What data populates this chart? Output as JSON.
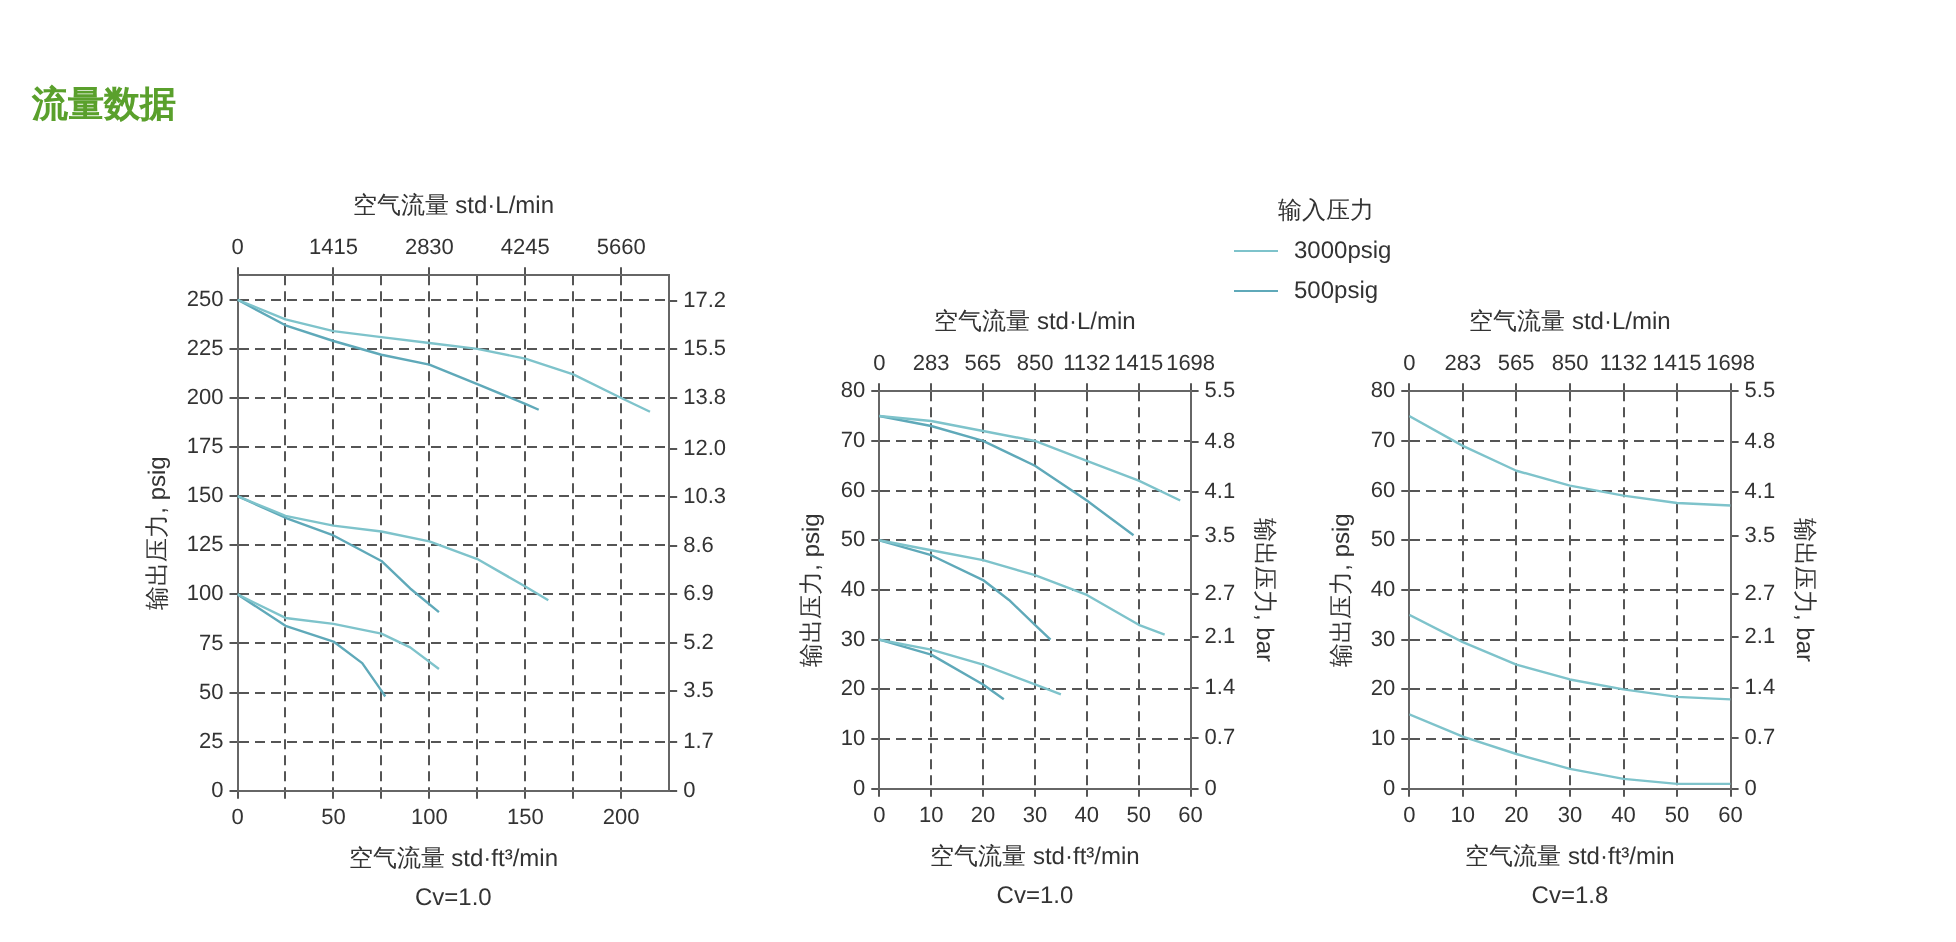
{
  "chart_data": [
    {
      "type": "line",
      "title": "流量数据",
      "xlabel": "空气流量 std·ft³/min",
      "x2label": "空气流量 std·L/min",
      "ylabel": "输出压力, psig",
      "xlim": [
        0,
        225
      ],
      "xticks": [
        0,
        {
          "value": 25,
          "label": null
        },
        50,
        {
          "value": 75,
          "label": null
        },
        100,
        {
          "value": 125,
          "label": null
        },
        150,
        {
          "value": 175,
          "label": null
        },
        200
      ],
      "x2lim": [
        0,
        6367.5
      ],
      "x2ticks": [
        0,
        1415,
        2830,
        4245,
        5660
      ],
      "ylim": [
        0,
        262.5
      ],
      "yticks": [
        0,
        25,
        50,
        75,
        100,
        125,
        150,
        175,
        200,
        225,
        250
      ],
      "y2lim": [
        0,
        18.1
      ],
      "y2ticks": [
        0,
        1.7,
        3.5,
        5.2,
        6.9,
        8.6,
        10.3,
        {
          "value": 12,
          "label": "12.0"
        },
        13.8,
        15.5,
        17.2
      ],
      "grid": true,
      "marker": "none",
      "annotations": [
        "Cv=1.0"
      ],
      "series": [
        {
          "color": "#7ec3cb",
          "x": [
            0,
            25,
            50,
            75,
            100,
            125,
            150,
            175,
            200,
            215
          ],
          "values": [
            250,
            240,
            234,
            231,
            228,
            225,
            220,
            212,
            200,
            193
          ]
        },
        {
          "color": "#5fa9b9",
          "x": [
            0,
            25,
            50,
            75,
            100,
            125,
            150,
            157
          ],
          "values": [
            250,
            237,
            229,
            222,
            217,
            207,
            197,
            194
          ]
        },
        {
          "color": "#7ec3cb",
          "x": [
            0,
            25,
            50,
            75,
            100,
            125,
            150,
            162
          ],
          "values": [
            150,
            140,
            135,
            132,
            127,
            118,
            104,
            97
          ]
        },
        {
          "color": "#5fa9b9",
          "x": [
            0,
            25,
            50,
            75,
            90,
            105
          ],
          "values": [
            150,
            139,
            130,
            117,
            103,
            91
          ]
        },
        {
          "color": "#7ec3cb",
          "x": [
            0,
            25,
            50,
            75,
            90,
            105
          ],
          "values": [
            100,
            88,
            85,
            80,
            73,
            62
          ]
        },
        {
          "color": "#5fa9b9",
          "x": [
            0,
            25,
            50,
            65,
            75,
            77
          ],
          "values": [
            100,
            84,
            76,
            65,
            51,
            48
          ]
        }
      ]
    },
    {
      "type": "line",
      "xlabel": "空气流量 std·ft³/min",
      "x2label": "空气流量 std·L/min",
      "ylabel": "输出压力, psig",
      "y2label": "输出压力, bar",
      "xlim": [
        0,
        60
      ],
      "xticks": [
        0,
        10,
        20,
        30,
        40,
        50,
        60
      ],
      "x2lim": [
        0,
        1698
      ],
      "x2ticks": [
        0,
        283,
        565,
        850,
        1132,
        1415,
        1698
      ],
      "ylim": [
        0,
        80
      ],
      "yticks": [
        0,
        10,
        20,
        30,
        40,
        50,
        60,
        70,
        80
      ],
      "y2lim": [
        0,
        5.5
      ],
      "y2ticks": [
        0,
        0.7,
        1.4,
        2.1,
        2.7,
        3.5,
        4.1,
        4.8,
        5.5
      ],
      "grid": true,
      "marker": "none",
      "legend": "top right",
      "legend_title": "输入压力",
      "annotations": [
        "Cv=1.0"
      ],
      "series": [
        {
          "name": "3000psig",
          "color": "#7ec3cb",
          "x": [
            0,
            10,
            20,
            30,
            40,
            50,
            58
          ],
          "values": [
            75,
            74,
            72,
            70,
            66,
            62,
            58
          ]
        },
        {
          "name": "500psig",
          "color": "#5fa9b9",
          "x": [
            0,
            10,
            20,
            30,
            40,
            49
          ],
          "values": [
            75,
            73,
            70,
            65,
            58,
            51
          ]
        },
        {
          "color": "#7ec3cb",
          "x": [
            0,
            10,
            20,
            30,
            40,
            50,
            55
          ],
          "values": [
            50,
            48,
            46,
            43,
            39,
            33,
            31
          ]
        },
        {
          "color": "#5fa9b9",
          "x": [
            0,
            10,
            20,
            25,
            30,
            33
          ],
          "values": [
            50,
            47,
            42,
            38,
            33,
            30
          ]
        },
        {
          "color": "#7ec3cb",
          "x": [
            0,
            10,
            20,
            30,
            35
          ],
          "values": [
            30,
            28,
            25,
            21,
            19
          ]
        },
        {
          "color": "#5fa9b9",
          "x": [
            0,
            10,
            20,
            24
          ],
          "values": [
            30,
            27,
            21,
            18
          ]
        }
      ]
    },
    {
      "type": "line",
      "xlabel": "空气流量 std·ft³/min",
      "x2label": "空气流量 std·L/min",
      "ylabel": "输出压力, psig",
      "y2label": "输出压力, bar",
      "xlim": [
        0,
        60
      ],
      "xticks": [
        0,
        10,
        20,
        30,
        40,
        50,
        60
      ],
      "x2lim": [
        0,
        1698
      ],
      "x2ticks": [
        0,
        283,
        565,
        850,
        1132,
        1415,
        1698
      ],
      "ylim": [
        0,
        80
      ],
      "yticks": [
        0,
        10,
        20,
        30,
        40,
        50,
        60,
        70,
        80
      ],
      "y2lim": [
        0,
        5.5
      ],
      "y2ticks": [
        0,
        0.7,
        1.4,
        2.1,
        2.7,
        3.5,
        4.1,
        4.8,
        5.5
      ],
      "grid": true,
      "marker": "none",
      "annotations": [
        "Cv=1.8"
      ],
      "series": [
        {
          "color": "#7ec3cb",
          "x": [
            0,
            10,
            20,
            30,
            40,
            50,
            60
          ],
          "values": [
            75,
            69,
            64,
            61,
            59,
            57.5,
            57
          ]
        },
        {
          "color": "#7ec3cb",
          "x": [
            0,
            10,
            20,
            30,
            40,
            50,
            60
          ],
          "values": [
            35,
            29.5,
            25,
            22,
            20,
            18.5,
            18
          ]
        },
        {
          "color": "#7ec3cb",
          "x": [
            0,
            10,
            20,
            30,
            40,
            50,
            60
          ],
          "values": [
            15,
            10.5,
            7,
            4,
            2,
            1,
            1
          ]
        }
      ]
    }
  ]
}
